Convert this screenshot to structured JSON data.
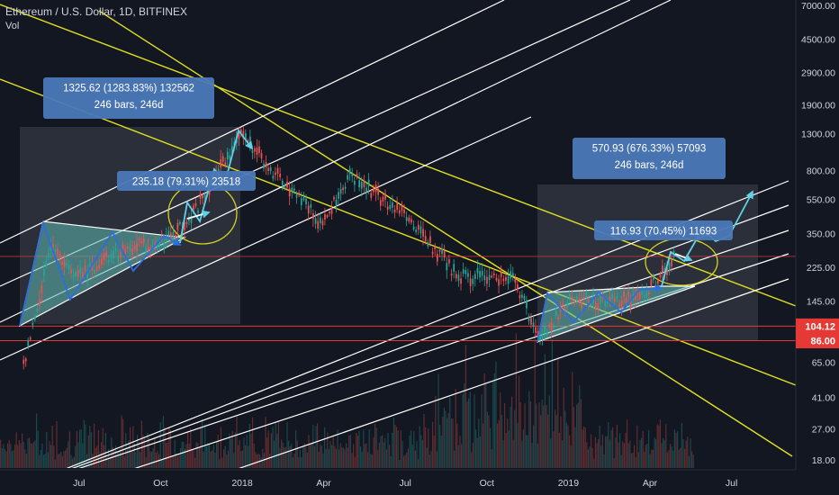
{
  "header": {
    "symbol": "Ethereum / U.S. Dollar, 1D, BITFINEX",
    "indicator": "Vol"
  },
  "colors": {
    "background": "#131722",
    "axis_text": "#d1d4dc",
    "up_candle": "#26a69a",
    "down_candle": "#ef5350",
    "yellow_lines": "#e0e020",
    "white_lines": "#ffffff",
    "red_lines": "#e53935",
    "info_box": "#4a78b8",
    "pattern_fill": "#5fb8b0",
    "arrow_blue": "#2a6fe0",
    "arrow_cyan": "#5fd0e8",
    "range_box": "#5a5d66"
  },
  "chart_data": {
    "type": "candlestick",
    "y_scale": "log",
    "price_axis_labels": [
      "7000.00",
      "4500.00",
      "2900.00",
      "1900.00",
      "1300.00",
      "800.00",
      "550.00",
      "350.00",
      "225.00",
      "145.00",
      "86.00",
      "65.00",
      "41.00",
      "27.00",
      "18.00"
    ],
    "time_axis_labels": [
      "Jul",
      "Oct",
      "2018",
      "Apr",
      "Jul",
      "Oct",
      "2019",
      "Apr",
      "Jul"
    ],
    "price_tags": [
      {
        "label": "104.12",
        "color": "#e53935"
      },
      {
        "label": "86.00",
        "color": "#e53935"
      }
    ],
    "measurements": [
      {
        "line1": "1325.62 (1283.83%) 132562",
        "line2": "246 bars, 246d"
      },
      {
        "line1": "235.18 (79.31%) 23518"
      },
      {
        "line1": "570.93 (676.33%) 57093",
        "line2": "246 bars, 246d"
      },
      {
        "line1": "116.93 (70.45%) 11693"
      }
    ],
    "price_path_approx": [
      {
        "date": "2017-05",
        "price": 60
      },
      {
        "date": "2017-06",
        "price": 300
      },
      {
        "date": "2017-07",
        "price": 200
      },
      {
        "date": "2017-09",
        "price": 300
      },
      {
        "date": "2017-10",
        "price": 300
      },
      {
        "date": "2017-11",
        "price": 400
      },
      {
        "date": "2017-12",
        "price": 700
      },
      {
        "date": "2018-01",
        "price": 1300
      },
      {
        "date": "2018-02",
        "price": 850
      },
      {
        "date": "2018-04",
        "price": 400
      },
      {
        "date": "2018-05",
        "price": 750
      },
      {
        "date": "2018-07",
        "price": 450
      },
      {
        "date": "2018-09",
        "price": 200
      },
      {
        "date": "2018-11",
        "price": 200
      },
      {
        "date": "2018-12",
        "price": 86
      },
      {
        "date": "2019-01",
        "price": 145
      },
      {
        "date": "2019-03",
        "price": 145
      },
      {
        "date": "2019-04",
        "price": 170
      },
      {
        "date": "2019-05",
        "price": 270
      }
    ]
  }
}
